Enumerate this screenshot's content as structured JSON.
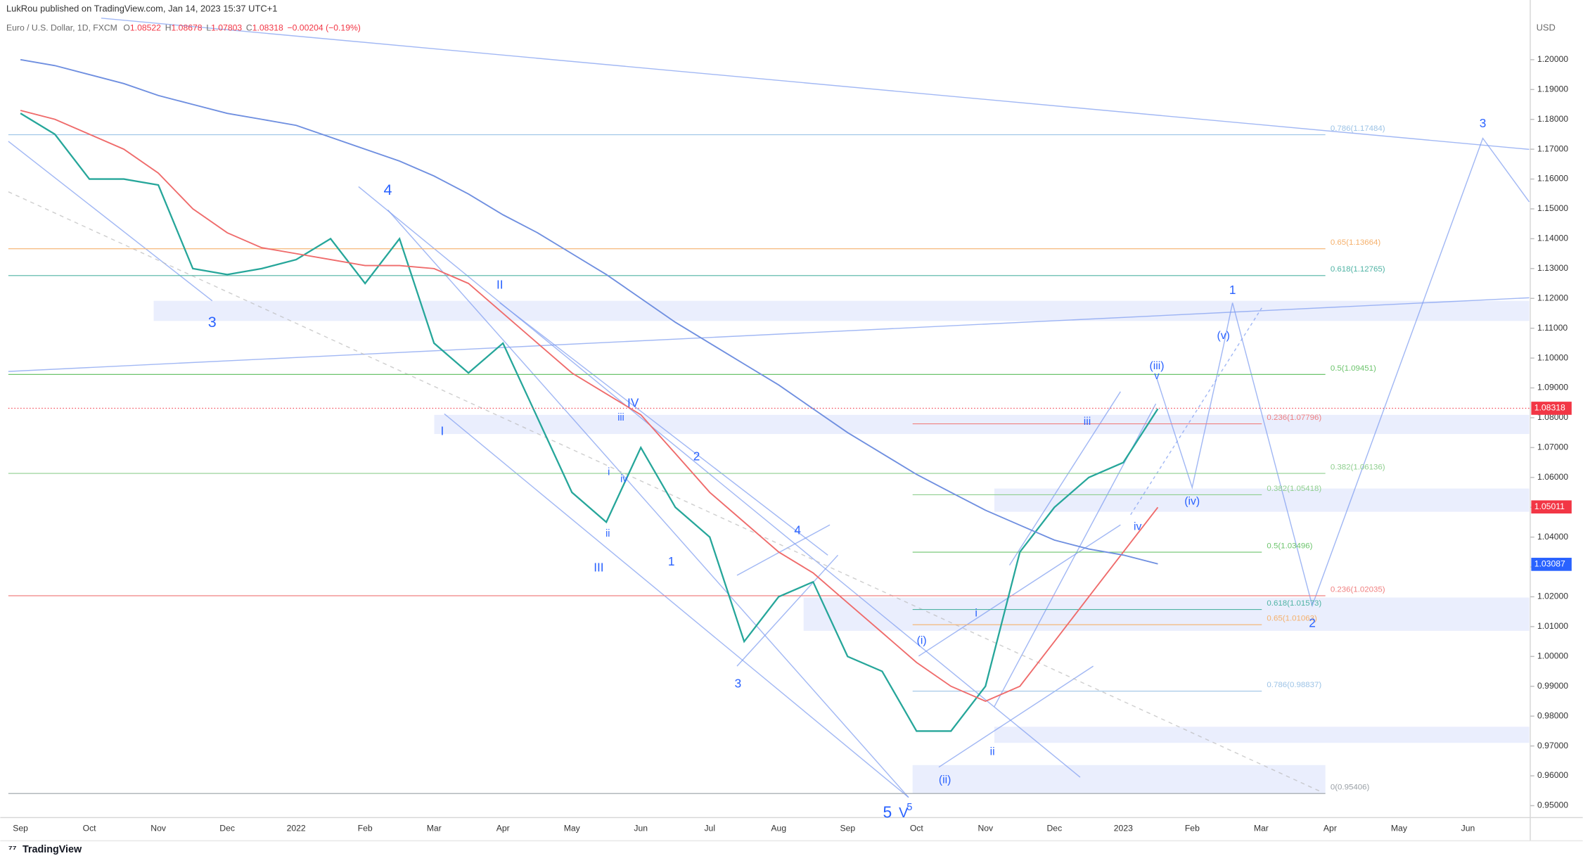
{
  "header": {
    "published": "LukRou published on TradingView.com, Jan 14, 2023 15:37 UTC+1",
    "symbol": "Euro / U.S. Dollar, 1D, FXCM",
    "ohlc": [
      {
        "key": "O",
        "value": "1.08522"
      },
      {
        "key": "H",
        "value": "1.08678"
      },
      {
        "key": "L",
        "value": "1.07803"
      },
      {
        "key": "C",
        "value": "1.08318"
      }
    ],
    "change": "−0.00204 (−0.19%)"
  },
  "footer": "TradingView",
  "chart_data": {
    "type": "line",
    "currency": "USD",
    "categories": [
      "Sep",
      null,
      "Oct",
      null,
      "Nov",
      null,
      "Dec",
      null,
      "2022",
      null,
      "Feb",
      null,
      "Mar",
      null,
      "Apr",
      null,
      "May",
      null,
      "Jun",
      null,
      "Jul",
      null,
      "Aug",
      null,
      "Sep",
      null,
      "Oct",
      null,
      "Nov",
      null,
      "Dec",
      null,
      "2023",
      null,
      "Feb",
      null,
      "Mar",
      null,
      "Apr",
      null,
      "May",
      null,
      "Jun",
      null
    ],
    "series": [
      {
        "color": "#26a69a",
        "values": [
          1.182,
          1.175,
          1.16,
          1.16,
          1.158,
          1.13,
          1.128,
          1.13,
          1.133,
          1.14,
          1.125,
          1.14,
          1.105,
          1.095,
          1.105,
          1.08,
          1.055,
          1.045,
          1.07,
          1.05,
          1.04,
          1.005,
          1.02,
          1.025,
          1.0,
          0.995,
          0.975,
          0.975,
          0.99,
          1.035,
          1.05,
          1.06,
          1.065,
          1.083,
          null,
          null,
          null,
          null,
          null,
          null,
          null,
          null,
          null,
          null
        ]
      },
      {
        "color": "#ef6b6b",
        "values": [
          1.183,
          1.18,
          1.175,
          1.17,
          1.162,
          1.15,
          1.142,
          1.137,
          1.135,
          1.133,
          1.131,
          1.131,
          1.13,
          1.125,
          1.115,
          1.105,
          1.095,
          1.088,
          1.081,
          1.068,
          1.055,
          1.045,
          1.035,
          1.028,
          1.018,
          1.008,
          0.998,
          0.99,
          0.985,
          0.99,
          1.005,
          1.02,
          1.035,
          1.05,
          null,
          null,
          null,
          null,
          null,
          null,
          null,
          null,
          null,
          null
        ]
      },
      {
        "color": "#6f8fe0",
        "values": [
          1.2,
          1.198,
          1.195,
          1.192,
          1.188,
          1.185,
          1.182,
          1.18,
          1.178,
          1.174,
          1.17,
          1.166,
          1.161,
          1.155,
          1.148,
          1.142,
          1.135,
          1.128,
          1.12,
          1.112,
          1.105,
          1.098,
          1.091,
          1.083,
          1.075,
          1.068,
          1.061,
          1.055,
          1.049,
          1.044,
          1.039,
          1.036,
          1.034,
          1.031,
          null,
          null,
          null,
          null,
          null,
          null,
          null,
          null,
          null,
          null
        ]
      }
    ],
    "ylim": [
      0.946,
      1.22
    ],
    "yticks": [
      {
        "value": 0.95,
        "label": "0.95000"
      },
      {
        "value": 0.96,
        "label": "0.96000"
      },
      {
        "value": 0.97,
        "label": "0.97000"
      },
      {
        "value": 0.98,
        "label": "0.98000"
      },
      {
        "value": 0.99,
        "label": "0.99000"
      },
      {
        "value": 1.0,
        "label": "1.00000"
      },
      {
        "value": 1.01,
        "label": "1.01000"
      },
      {
        "value": 1.02,
        "label": "1.02000"
      },
      {
        "value": 1.03,
        "label": "1.03000"
      },
      {
        "value": 1.04,
        "label": "1.04000"
      },
      {
        "value": 1.05,
        "label": "1.05000"
      },
      {
        "value": 1.06,
        "label": "1.06000"
      },
      {
        "value": 1.07,
        "label": "1.07000"
      },
      {
        "value": 1.08,
        "label": "1.08000"
      },
      {
        "value": 1.09,
        "label": "1.09000"
      },
      {
        "value": 1.1,
        "label": "1.10000"
      },
      {
        "value": 1.11,
        "label": "1.11000"
      },
      {
        "value": 1.12,
        "label": "1.12000"
      },
      {
        "value": 1.13,
        "label": "1.13000"
      },
      {
        "value": 1.14,
        "label": "1.14000"
      },
      {
        "value": 1.15,
        "label": "1.15000"
      },
      {
        "value": 1.16,
        "label": "1.16000"
      },
      {
        "value": 1.17,
        "label": "1.17000"
      },
      {
        "value": 1.18,
        "label": "1.18000"
      },
      {
        "value": 1.19,
        "label": "1.19000"
      },
      {
        "value": 1.2,
        "label": "1.20000"
      }
    ],
    "grid": false,
    "fib_levels": [
      {
        "value": 1.17484,
        "label": "0.786(1.17484)",
        "color": "#9cc3e6"
      },
      {
        "value": 1.13664,
        "label": "0.65(1.13664)",
        "color": "#f5b06b"
      },
      {
        "value": 1.12765,
        "label": "0.618(1.12765)",
        "color": "#4fb3a4"
      },
      {
        "value": 1.09451,
        "label": "0.5(1.09451)",
        "color": "#6cc46c"
      },
      {
        "value": 1.06136,
        "label": "0.382(1.06136)",
        "color": "#8fcf8f"
      },
      {
        "value": 1.02035,
        "label": "0.236(1.02035)",
        "color": "#f08080"
      },
      {
        "value": 0.95406,
        "label": "0(0.95406)",
        "color": "#9aa0a6"
      },
      {
        "value": 1.07796,
        "label": "0.236(1.07796)",
        "color": "#f08080"
      },
      {
        "value": 1.05418,
        "label": "0.382(1.05418)",
        "color": "#8fcf8f"
      },
      {
        "value": 1.03496,
        "label": "0.5(1.03496)",
        "color": "#6cc46c"
      },
      {
        "value": 1.01573,
        "label": "0.618(1.01573)",
        "color": "#4fb3a4"
      },
      {
        "value": 1.01063,
        "label": "0.65(1.01063)",
        "color": "#f5b06b"
      },
      {
        "value": 0.98837,
        "label": "0.786(0.98837)",
        "color": "#9cc3e6"
      }
    ],
    "price_badges": [
      {
        "value": 1.08318,
        "label": "1.08318",
        "color": "#f23645"
      },
      {
        "value": 1.05011,
        "label": "1.05011",
        "color": "#f23645"
      },
      {
        "value": 1.03087,
        "label": "1.03087",
        "color": "#2962ff"
      }
    ],
    "wave_labels": [
      "3",
      "4",
      "II",
      "I",
      "IV",
      "III",
      "iii",
      "i",
      "iv",
      "ii",
      "2",
      "1",
      "4",
      "3",
      "5",
      "V",
      "5",
      "(i)",
      "(ii)",
      "i",
      "ii",
      "iii",
      "iv",
      "(iii)",
      "v",
      "(iv)",
      "(v)",
      "1",
      "2",
      "3"
    ]
  }
}
